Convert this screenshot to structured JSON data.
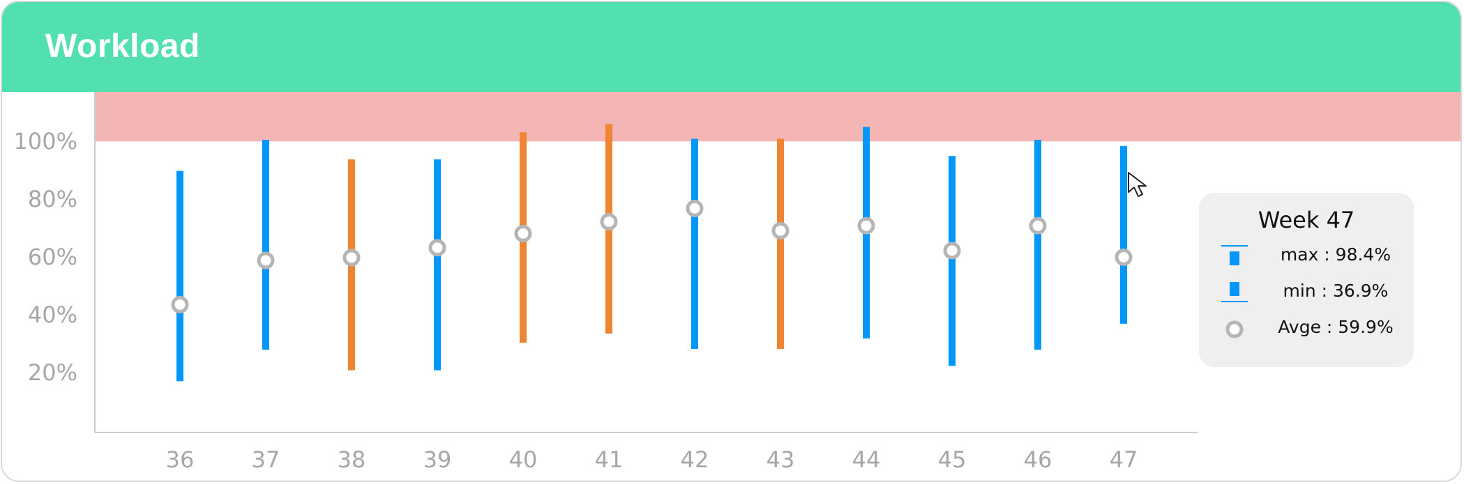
{
  "header": {
    "title": "Workload"
  },
  "colors": {
    "header_bg": "#52e0b1",
    "over_capacity_band": "#f4b6b4",
    "blue": "#0596fa",
    "orange": "#ee8533",
    "avg_marker": "#b5b5b5",
    "axis_text": "#a6a6a6"
  },
  "chart_data": {
    "type": "range-bar",
    "title": "",
    "xlabel": "",
    "ylabel": "",
    "categories": [
      "36",
      "37",
      "38",
      "39",
      "40",
      "41",
      "42",
      "43",
      "44",
      "45",
      "46",
      "47"
    ],
    "y_ticks": [
      "20%",
      "40%",
      "60%",
      "80%",
      "100%"
    ],
    "ylim": [
      0,
      118
    ],
    "over_capacity_band": [
      100,
      118
    ],
    "series": [
      {
        "max": [
          89.8,
          100.5,
          93.8,
          93.8,
          103.1,
          106.0,
          100.9,
          100.9,
          105.0,
          94.9,
          100.5,
          98.4
        ]
      },
      {
        "min": [
          17.0,
          27.9,
          20.8,
          20.8,
          30.3,
          33.5,
          28.2,
          28.2,
          31.8,
          22.3,
          27.9,
          36.9
        ]
      },
      {
        "avg": [
          43.5,
          58.8,
          59.8,
          63.2,
          68.1,
          72.2,
          76.8,
          69.1,
          70.8,
          62.2,
          70.8,
          59.9
        ]
      }
    ],
    "bar_colors": [
      "blue",
      "blue",
      "orange",
      "blue",
      "orange",
      "orange",
      "blue",
      "orange",
      "blue",
      "blue",
      "blue",
      "blue"
    ],
    "grid": false
  },
  "tooltip": {
    "title": "Week 47",
    "rows": [
      {
        "icon": "max-icon",
        "label": "max : 98.4%"
      },
      {
        "icon": "min-icon",
        "label": "min : 36.9%"
      },
      {
        "icon": "avg-icon",
        "label": "Avge : 59.9%"
      }
    ]
  }
}
